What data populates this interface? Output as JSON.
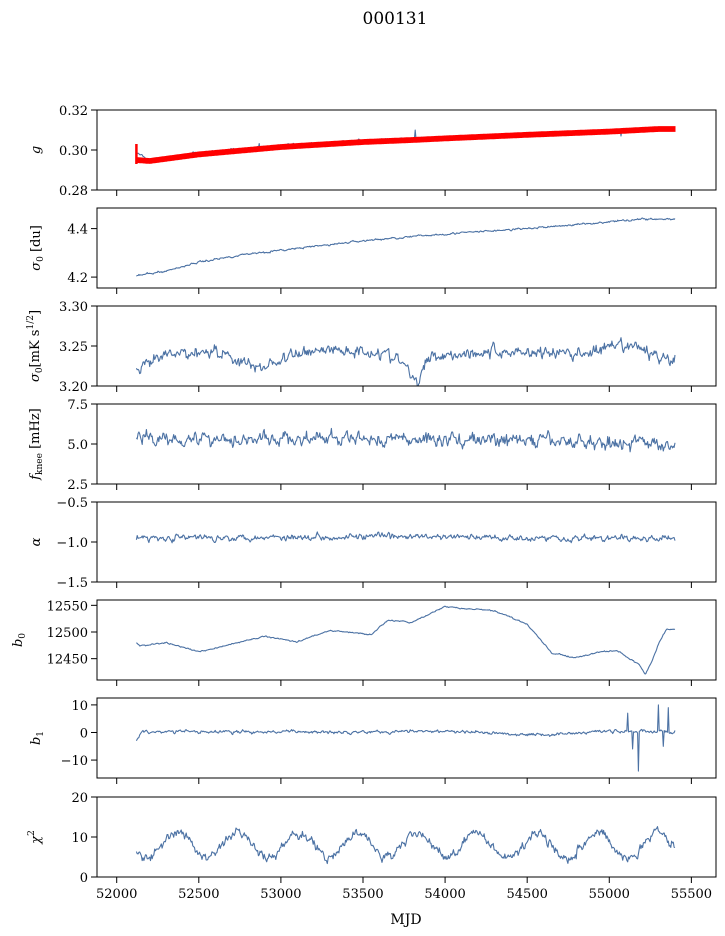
{
  "figure": {
    "title": "000131",
    "xlabel": "MJD"
  },
  "colors": {
    "series": "#4c72a4",
    "fit": "#ff0000",
    "axis": "#000000"
  },
  "chart_data": [
    {
      "type": "line",
      "ylabel": "g",
      "xlim": [
        51880,
        55650
      ],
      "ylim": [
        0.28,
        0.32
      ],
      "yticks": [
        0.28,
        0.3,
        0.32
      ],
      "yticklabels": [
        "0.28",
        "0.30",
        "0.32"
      ],
      "x": [
        52120,
        52200,
        52500,
        53000,
        53500,
        53800,
        54000,
        54500,
        55000,
        55300,
        55400
      ],
      "series": [
        {
          "kind": "data",
          "values": [
            0.2985,
            0.2948,
            0.2982,
            0.302,
            0.3045,
            0.3055,
            0.306,
            0.3078,
            0.309,
            0.3105,
            0.3105
          ],
          "noise": 0.0008,
          "outliers": [
            [
              52870,
              0.3032
            ],
            [
              53820,
              0.31
            ],
            [
              55070,
              0.307
            ]
          ]
        },
        {
          "kind": "fit",
          "values": [
            0.295,
            0.2945,
            0.2978,
            0.3015,
            0.304,
            0.305,
            0.3058,
            0.3076,
            0.3092,
            0.3105,
            0.3105
          ],
          "band": 0.0012,
          "spike": [
            52120,
            0.293,
            0.303
          ]
        }
      ]
    },
    {
      "type": "line",
      "ylabel": "σ0 [du]",
      "xlim": [
        51880,
        55650
      ],
      "ylim": [
        4.155,
        4.485
      ],
      "yticks": [
        4.2,
        4.4
      ],
      "yticklabels": [
        "4.2",
        "4.4"
      ],
      "x": [
        52120,
        52300,
        52500,
        52800,
        53000,
        53500,
        54000,
        54500,
        55000,
        55200,
        55400
      ],
      "series": [
        {
          "kind": "data",
          "values": [
            4.205,
            4.225,
            4.262,
            4.296,
            4.31,
            4.35,
            4.378,
            4.4,
            4.428,
            4.44,
            4.438
          ],
          "noise": 0.004
        }
      ]
    },
    {
      "type": "line",
      "ylabel": "σ0[mK s^1/2]",
      "xlim": [
        51880,
        55650
      ],
      "ylim": [
        3.2,
        3.3
      ],
      "yticks": [
        3.2,
        3.25,
        3.3
      ],
      "yticklabels": [
        "3.20",
        "3.25",
        "3.30"
      ],
      "x": [
        52120,
        52300,
        52600,
        52850,
        53200,
        53600,
        53750,
        53830,
        53900,
        54200,
        54500,
        54800,
        55130,
        55300,
        55400
      ],
      "series": [
        {
          "kind": "data",
          "values": [
            3.218,
            3.238,
            3.245,
            3.222,
            3.246,
            3.243,
            3.228,
            3.2,
            3.238,
            3.242,
            3.243,
            3.24,
            3.25,
            3.238,
            3.232
          ],
          "noise": 0.008
        }
      ]
    },
    {
      "type": "line",
      "ylabel": "f_knee [mHz]",
      "xlim": [
        51880,
        55650
      ],
      "ylim": [
        2.5,
        7.5
      ],
      "yticks": [
        2.5,
        5.0,
        7.5
      ],
      "yticklabels": [
        "2.5",
        "5.0",
        "7.5"
      ],
      "x": [
        52120,
        53000,
        54000,
        55000,
        55400
      ],
      "series": [
        {
          "kind": "data",
          "values": [
            5.4,
            5.3,
            5.3,
            5.1,
            5.0
          ],
          "noise": 0.45
        }
      ]
    },
    {
      "type": "line",
      "ylabel": "α",
      "xlim": [
        51880,
        55650
      ],
      "ylim": [
        -1.5,
        -0.5
      ],
      "yticks": [
        -1.5,
        -1.0,
        -0.5
      ],
      "yticklabels": [
        "−1.5",
        "−1.0",
        "−0.5"
      ],
      "x": [
        52120,
        53500,
        55400
      ],
      "series": [
        {
          "kind": "data",
          "values": [
            -0.95,
            -0.93,
            -0.96
          ],
          "noise": 0.04
        }
      ]
    },
    {
      "type": "line",
      "ylabel": "b0",
      "xlim": [
        51880,
        55650
      ],
      "ylim": [
        12410,
        12560
      ],
      "yticks": [
        12450,
        12500,
        12550
      ],
      "yticklabels": [
        "12450",
        "12500",
        "12550"
      ],
      "x": [
        52120,
        52140,
        52300,
        52500,
        52700,
        52900,
        53100,
        53300,
        53550,
        53650,
        53800,
        54000,
        54100,
        54300,
        54500,
        54650,
        54800,
        54950,
        55050,
        55120,
        55180,
        55220,
        55260,
        55300,
        55350,
        55400
      ],
      "series": [
        {
          "kind": "data",
          "values": [
            12480,
            12474,
            12480,
            12463,
            12477,
            12492,
            12482,
            12503,
            12495,
            12522,
            12518,
            12548,
            12544,
            12540,
            12515,
            12460,
            12452,
            12463,
            12465,
            12450,
            12440,
            12420,
            12445,
            12478,
            12505,
            12505
          ],
          "noise": 1.2
        }
      ]
    },
    {
      "type": "line",
      "ylabel": "b1",
      "xlim": [
        51880,
        55650
      ],
      "ylim": [
        -16.5,
        12.5
      ],
      "yticks": [
        -10,
        0,
        10
      ],
      "yticklabels": [
        "−10",
        "0",
        "10"
      ],
      "x": [
        52120,
        52150,
        53000,
        54000,
        54600,
        55000,
        55400
      ],
      "series": [
        {
          "kind": "data",
          "values": [
            -3.0,
            0.3,
            0.2,
            0.4,
            -0.8,
            0.5,
            0.2
          ],
          "noise": 0.6,
          "outliers": [
            [
              55110,
              7
            ],
            [
              55140,
              -6
            ],
            [
              55180,
              -14
            ],
            [
              55300,
              10
            ],
            [
              55330,
              -5
            ],
            [
              55360,
              9
            ]
          ]
        }
      ]
    },
    {
      "type": "line",
      "ylabel": "χ²",
      "xlim": [
        51880,
        55650
      ],
      "ylim": [
        0,
        20
      ],
      "yticks": [
        0,
        10,
        20
      ],
      "yticklabels": [
        "0",
        "10",
        "20"
      ],
      "xticks": [
        52000,
        52500,
        53000,
        53500,
        54000,
        54500,
        55000,
        55500
      ],
      "xticklabels": [
        "52000",
        "52500",
        "53000",
        "53500",
        "54000",
        "54500",
        "55000",
        "55500"
      ],
      "x": [
        52120,
        55400
      ],
      "series": [
        {
          "kind": "data",
          "periodic": true,
          "mean": 8.0,
          "amplitude": 3.0,
          "period": 365.25,
          "phase": 52280,
          "noise": 1.2
        }
      ]
    }
  ]
}
